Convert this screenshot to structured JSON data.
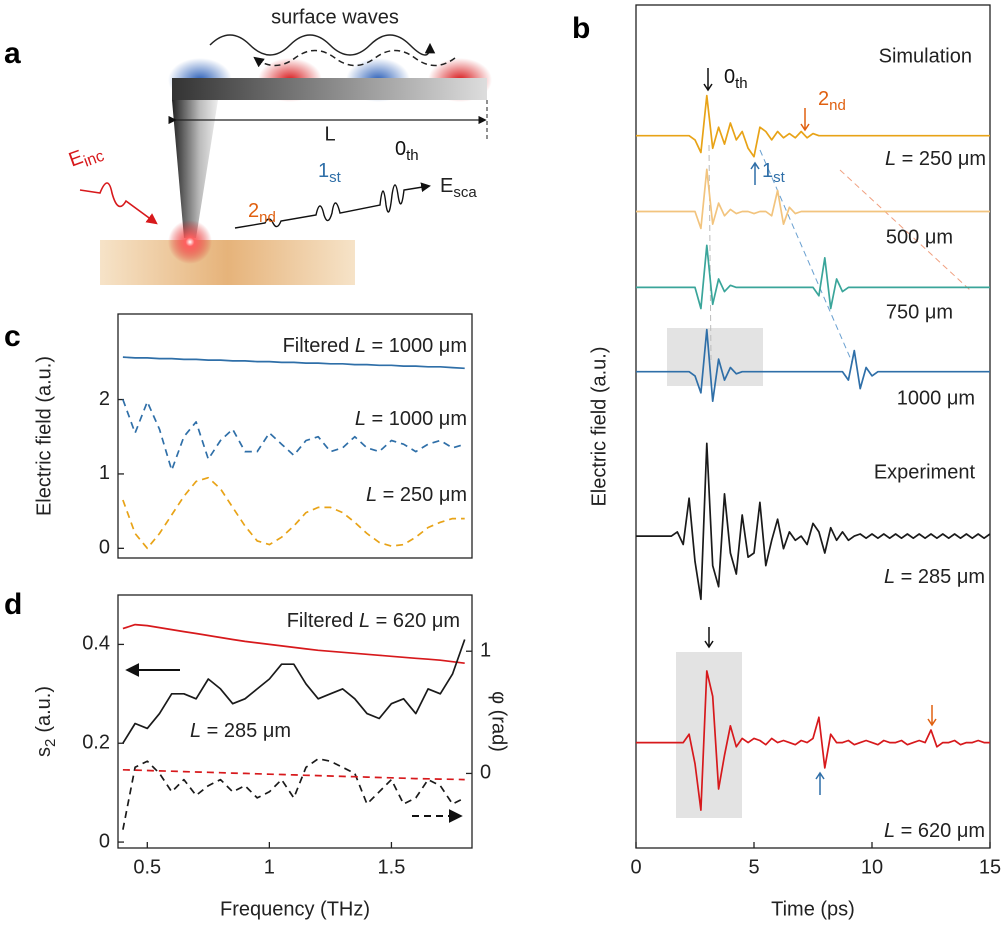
{
  "schematic": {
    "panel": "a",
    "title": "surface waves",
    "length_label": "L",
    "incident": {
      "text": "E",
      "sub": "inc"
    },
    "orders": [
      {
        "text": "2",
        "sub": "nd"
      },
      {
        "text": "1",
        "sub": "st"
      },
      {
        "text": "0",
        "sub": "th"
      }
    ],
    "scattered": {
      "text": "E",
      "sub": "sca"
    }
  },
  "chart_data": [
    {
      "type": "line",
      "panel": "b",
      "xlabel": "Time (ps)",
      "ylabel": "Electric field (a.u.)",
      "annotations": [
        "Simulation",
        "Experiment"
      ],
      "orders": [
        {
          "text": "0",
          "sub": "th"
        },
        {
          "text": "2",
          "sub": "nd"
        },
        {
          "text": "1",
          "sub": "st"
        }
      ],
      "xlim": [
        0,
        15
      ],
      "xticks": [
        0,
        5,
        10,
        15
      ],
      "ylim": [
        0,
        20
      ],
      "x": [
        0,
        0.25,
        0.5,
        0.75,
        1,
        1.25,
        1.5,
        1.75,
        2,
        2.25,
        2.5,
        2.75,
        3,
        3.25,
        3.5,
        3.75,
        4,
        4.25,
        4.5,
        4.75,
        5,
        5.25,
        5.5,
        5.75,
        6,
        6.25,
        6.5,
        6.75,
        7,
        7.25,
        7.5,
        7.75,
        8,
        8.25,
        8.5,
        8.75,
        9,
        9.25,
        9.5,
        9.75,
        10,
        10.25,
        10.5,
        10.75,
        11,
        11.25,
        11.5,
        11.75,
        12,
        12.25,
        12.5,
        12.75,
        13,
        13.25,
        13.5,
        13.75,
        14,
        14.25,
        14.5,
        14.75,
        15
      ],
      "series": [
        {
          "name": "L = 250 μm",
          "color": "#e8a317",
          "values": [
            16.9,
            16.9,
            16.9,
            16.9,
            16.9,
            16.9,
            16.9,
            16.9,
            16.9,
            16.9,
            16.8,
            16.5,
            17.85,
            16.6,
            17.1,
            16.7,
            17.2,
            16.8,
            17.0,
            16.6,
            16.4,
            17.1,
            17.0,
            16.8,
            17.0,
            16.85,
            16.95,
            16.85,
            17.0,
            16.85,
            16.95,
            16.9,
            16.9,
            16.9,
            16.9,
            16.9,
            16.9,
            16.9,
            16.9,
            16.9,
            16.9,
            16.9,
            16.9,
            16.9,
            16.9,
            16.9,
            16.9,
            16.9,
            16.9,
            16.9,
            16.9,
            16.9,
            16.9,
            16.9,
            16.9,
            16.9,
            16.9,
            16.9,
            16.9,
            16.9,
            16.9
          ]
        },
        {
          "name": "500 μm",
          "color": "#f2c47e",
          "values": [
            15.1,
            15.1,
            15.1,
            15.1,
            15.1,
            15.1,
            15.1,
            15.1,
            15.1,
            15.1,
            15.1,
            14.7,
            16.1,
            14.8,
            15.3,
            15.0,
            15.15,
            15.05,
            15.1,
            15.1,
            15.05,
            15.1,
            15.1,
            15.0,
            15.6,
            14.8,
            15.2,
            15.05,
            15.1,
            15.1,
            15.1,
            15.1,
            15.1,
            15.1,
            15.1,
            15.1,
            15.1,
            15.1,
            15.1,
            15.1,
            15.1,
            15.1,
            15.1,
            15.1,
            15.1,
            15.1,
            15.1,
            15.1,
            15.1,
            15.1,
            15.1,
            15.1,
            15.1,
            15.1,
            15.1,
            15.1,
            15.1,
            15.1,
            15.1,
            15.1,
            15.1
          ]
        },
        {
          "name": "750 μm",
          "color": "#3aa59a",
          "values": [
            13.3,
            13.3,
            13.3,
            13.3,
            13.3,
            13.3,
            13.3,
            13.3,
            13.3,
            13.3,
            13.3,
            12.8,
            14.3,
            12.9,
            13.5,
            13.2,
            13.35,
            13.3,
            13.3,
            13.3,
            13.3,
            13.3,
            13.3,
            13.3,
            13.3,
            13.3,
            13.3,
            13.3,
            13.3,
            13.3,
            13.3,
            13.1,
            14.0,
            12.8,
            13.5,
            13.2,
            13.3,
            13.3,
            13.3,
            13.3,
            13.3,
            13.3,
            13.3,
            13.3,
            13.3,
            13.3,
            13.3,
            13.3,
            13.3,
            13.3,
            13.3,
            13.3,
            13.3,
            13.3,
            13.3,
            13.3,
            13.3,
            13.3,
            13.3,
            13.3,
            13.3
          ]
        },
        {
          "name": "1000 μm",
          "color": "#2f6fa8",
          "values": [
            11.3,
            11.3,
            11.3,
            11.3,
            11.3,
            11.3,
            11.3,
            11.3,
            11.3,
            11.3,
            11.2,
            10.8,
            12.3,
            10.6,
            11.6,
            11.1,
            11.4,
            11.25,
            11.3,
            11.3,
            11.3,
            11.3,
            11.3,
            11.3,
            11.3,
            11.3,
            11.3,
            11.3,
            11.3,
            11.3,
            11.3,
            11.3,
            11.3,
            11.3,
            11.3,
            11.3,
            11.1,
            11.8,
            10.9,
            11.4,
            11.2,
            11.3,
            11.3,
            11.3,
            11.3,
            11.3,
            11.3,
            11.3,
            11.3,
            11.3,
            11.3,
            11.3,
            11.3,
            11.3,
            11.3,
            11.3,
            11.3,
            11.3,
            11.3,
            11.3,
            11.3
          ]
        },
        {
          "name": "L = 285 μm",
          "color": "#1a1a1a",
          "values": [
            7.4,
            7.4,
            7.4,
            7.4,
            7.4,
            7.4,
            7.4,
            7.5,
            7.2,
            8.3,
            6.8,
            5.9,
            9.6,
            6.7,
            6.2,
            8.4,
            7.0,
            6.5,
            7.9,
            6.9,
            7.0,
            8.2,
            6.7,
            7.3,
            7.8,
            7.1,
            7.5,
            7.3,
            7.4,
            7.2,
            7.7,
            7.5,
            7.0,
            7.6,
            7.3,
            7.5,
            7.3,
            7.4,
            7.45,
            7.35,
            7.45,
            7.35,
            7.45,
            7.35,
            7.45,
            7.35,
            7.45,
            7.35,
            7.45,
            7.35,
            7.45,
            7.35,
            7.45,
            7.35,
            7.45,
            7.35,
            7.45,
            7.35,
            7.45,
            7.35,
            7.45
          ]
        },
        {
          "name": "L = 620 μm",
          "color": "#d7191c",
          "values": [
            2.5,
            2.5,
            2.5,
            2.5,
            2.5,
            2.5,
            2.5,
            2.5,
            2.5,
            2.7,
            2.0,
            0.9,
            4.2,
            3.6,
            1.4,
            2.2,
            2.9,
            2.4,
            2.6,
            2.5,
            2.6,
            2.55,
            2.45,
            2.6,
            2.5,
            2.55,
            2.5,
            2.45,
            2.55,
            2.5,
            2.6,
            3.1,
            1.9,
            2.7,
            2.5,
            2.5,
            2.55,
            2.45,
            2.5,
            2.55,
            2.5,
            2.45,
            2.55,
            2.5,
            2.5,
            2.55,
            2.45,
            2.5,
            2.55,
            2.5,
            2.8,
            2.4,
            2.5,
            2.5,
            2.55,
            2.45,
            2.5,
            2.5,
            2.55,
            2.5,
            2.5
          ]
        }
      ]
    },
    {
      "type": "line",
      "panel": "c",
      "ylabel": "Electric field (a.u.)",
      "xlim": [
        0.38,
        1.83
      ],
      "ylim": [
        -0.13,
        3.15
      ],
      "yticks": [
        0,
        1,
        2
      ],
      "x": [
        0.4,
        0.45,
        0.5,
        0.55,
        0.6,
        0.65,
        0.7,
        0.75,
        0.8,
        0.85,
        0.9,
        0.95,
        1.0,
        1.05,
        1.1,
        1.15,
        1.2,
        1.25,
        1.3,
        1.35,
        1.4,
        1.45,
        1.5,
        1.55,
        1.6,
        1.65,
        1.7,
        1.75,
        1.8
      ],
      "series": [
        {
          "name": "Filtered L = 1000 μm",
          "color": "#2f6fa8",
          "dashed": false,
          "values": [
            2.57,
            2.56,
            2.56,
            2.55,
            2.55,
            2.54,
            2.54,
            2.53,
            2.53,
            2.52,
            2.52,
            2.51,
            2.51,
            2.5,
            2.5,
            2.49,
            2.49,
            2.48,
            2.48,
            2.47,
            2.47,
            2.46,
            2.46,
            2.45,
            2.45,
            2.44,
            2.44,
            2.43,
            2.42
          ]
        },
        {
          "name": "L = 1000 μm",
          "color": "#2f6fa8",
          "dashed": true,
          "values": [
            2.0,
            1.55,
            1.97,
            1.6,
            1.05,
            1.5,
            1.7,
            1.2,
            1.45,
            1.6,
            1.3,
            1.3,
            1.55,
            1.4,
            1.25,
            1.45,
            1.5,
            1.3,
            1.35,
            1.5,
            1.35,
            1.3,
            1.45,
            1.4,
            1.3,
            1.4,
            1.45,
            1.35,
            1.4
          ]
        },
        {
          "name": "L = 250 μm",
          "color": "#e8a317",
          "dashed": true,
          "values": [
            0.65,
            0.2,
            0.0,
            0.2,
            0.45,
            0.7,
            0.9,
            0.95,
            0.8,
            0.55,
            0.3,
            0.1,
            0.05,
            0.15,
            0.3,
            0.48,
            0.55,
            0.55,
            0.48,
            0.35,
            0.2,
            0.08,
            0.03,
            0.05,
            0.15,
            0.28,
            0.35,
            0.4,
            0.4
          ]
        }
      ]
    },
    {
      "type": "line",
      "panel": "d",
      "xlabel": "Frequency (THz)",
      "ylabel": {
        "text": "s",
        "sub": "2",
        "rest": "(a.u.)"
      },
      "y2label": "φ (rad)",
      "xlim": [
        0.38,
        1.83
      ],
      "xticks": [
        0.5,
        1,
        1.5
      ],
      "ylim": [
        -0.012,
        0.5
      ],
      "yticks": [
        0,
        0.2,
        0.4
      ],
      "y2lim": [
        -0.61,
        1.46
      ],
      "y2ticks": [
        0,
        1
      ],
      "x": [
        0.4,
        0.45,
        0.5,
        0.55,
        0.6,
        0.65,
        0.7,
        0.75,
        0.8,
        0.85,
        0.9,
        0.95,
        1.0,
        1.05,
        1.1,
        1.15,
        1.2,
        1.25,
        1.3,
        1.35,
        1.4,
        1.45,
        1.5,
        1.55,
        1.6,
        1.65,
        1.7,
        1.75,
        1.8
      ],
      "series": [
        {
          "name": "Filtered L = 620 μm",
          "color": "#d7191c",
          "dashed": false,
          "axis": "y",
          "values": [
            0.432,
            0.44,
            0.438,
            0.434,
            0.43,
            0.426,
            0.422,
            0.418,
            0.414,
            0.41,
            0.406,
            0.403,
            0.4,
            0.397,
            0.394,
            0.391,
            0.388,
            0.386,
            0.384,
            0.382,
            0.38,
            0.378,
            0.376,
            0.374,
            0.372,
            0.37,
            0.368,
            0.365,
            0.362
          ]
        },
        {
          "name": "L = 285 μm",
          "color": "#1a1a1a",
          "dashed": false,
          "axis": "y",
          "values": [
            0.2,
            0.24,
            0.23,
            0.26,
            0.3,
            0.3,
            0.29,
            0.33,
            0.31,
            0.28,
            0.29,
            0.31,
            0.33,
            0.36,
            0.36,
            0.32,
            0.29,
            0.3,
            0.31,
            0.29,
            0.26,
            0.25,
            0.28,
            0.29,
            0.26,
            0.31,
            0.3,
            0.34,
            0.41
          ]
        },
        {
          "color": "#1a1a1a",
          "dashed": true,
          "axis": "y2",
          "values": [
            -0.46,
            0.05,
            0.1,
            0.0,
            -0.15,
            -0.05,
            -0.18,
            -0.1,
            -0.05,
            -0.15,
            -0.1,
            -0.2,
            -0.15,
            -0.05,
            -0.2,
            0.05,
            0.12,
            0.1,
            0.05,
            0.0,
            -0.25,
            -0.15,
            -0.05,
            -0.25,
            -0.2,
            -0.05,
            -0.1,
            -0.25,
            -0.2
          ]
        },
        {
          "color": "#d7191c",
          "dashed": true,
          "axis": "y2",
          "values": [
            0.03,
            0.027,
            0.024,
            0.021,
            0.018,
            0.015,
            0.012,
            0.009,
            0.006,
            0.003,
            0.0,
            -0.003,
            -0.006,
            -0.009,
            -0.012,
            -0.015,
            -0.018,
            -0.021,
            -0.024,
            -0.027,
            -0.03,
            -0.033,
            -0.036,
            -0.039,
            -0.042,
            -0.044,
            -0.046,
            -0.048,
            -0.05
          ]
        }
      ]
    }
  ]
}
